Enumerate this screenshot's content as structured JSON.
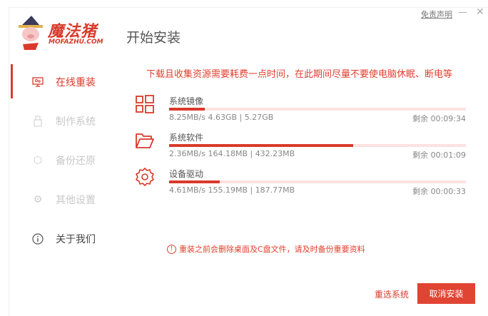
{
  "header": {
    "logo_cn": "魔法猪",
    "logo_en": "MOFAZHU.COM",
    "title": "开始安装",
    "disclaimer": "免责声明"
  },
  "sidebar": {
    "items": [
      {
        "label": "在线重装",
        "icon": "monitor-icon",
        "active": true
      },
      {
        "label": "制作系统",
        "icon": "usb-icon",
        "disabled": true
      },
      {
        "label": "备份还原",
        "icon": "backup-icon",
        "disabled": true
      },
      {
        "label": "其他设置",
        "icon": "gear-icon",
        "disabled": true
      },
      {
        "label": "关于我们",
        "icon": "info-icon"
      }
    ]
  },
  "notice": "下载且收集资源需要耗费一点时间，在此期间尽量不要使电脑休眠、断电等",
  "tasks": [
    {
      "name": "系统镜像",
      "icon": "windows-icon",
      "info": "8.25MB/s 4.63GB | 5.27GB",
      "remain": "剩余 00:09:34",
      "progress": 12
    },
    {
      "name": "系统软件",
      "icon": "folder-icon",
      "info": "2.36MB/s 164.18MB | 432.23MB",
      "remain": "剩余 00:01:09",
      "progress": 62
    },
    {
      "name": "设备驱动",
      "icon": "gear-icon",
      "info": "4.61MB/s 155.19MB | 187.77MB",
      "remain": "剩余 00:00:33",
      "progress": 17
    }
  ],
  "warning": "重装之前会删除桌面及C盘文件，请及时备份重要资料",
  "buttons": {
    "reselect": "重选系统",
    "cancel": "取消安装"
  },
  "colors": {
    "accent": "#d93a2b",
    "track": "#fde2e2"
  }
}
